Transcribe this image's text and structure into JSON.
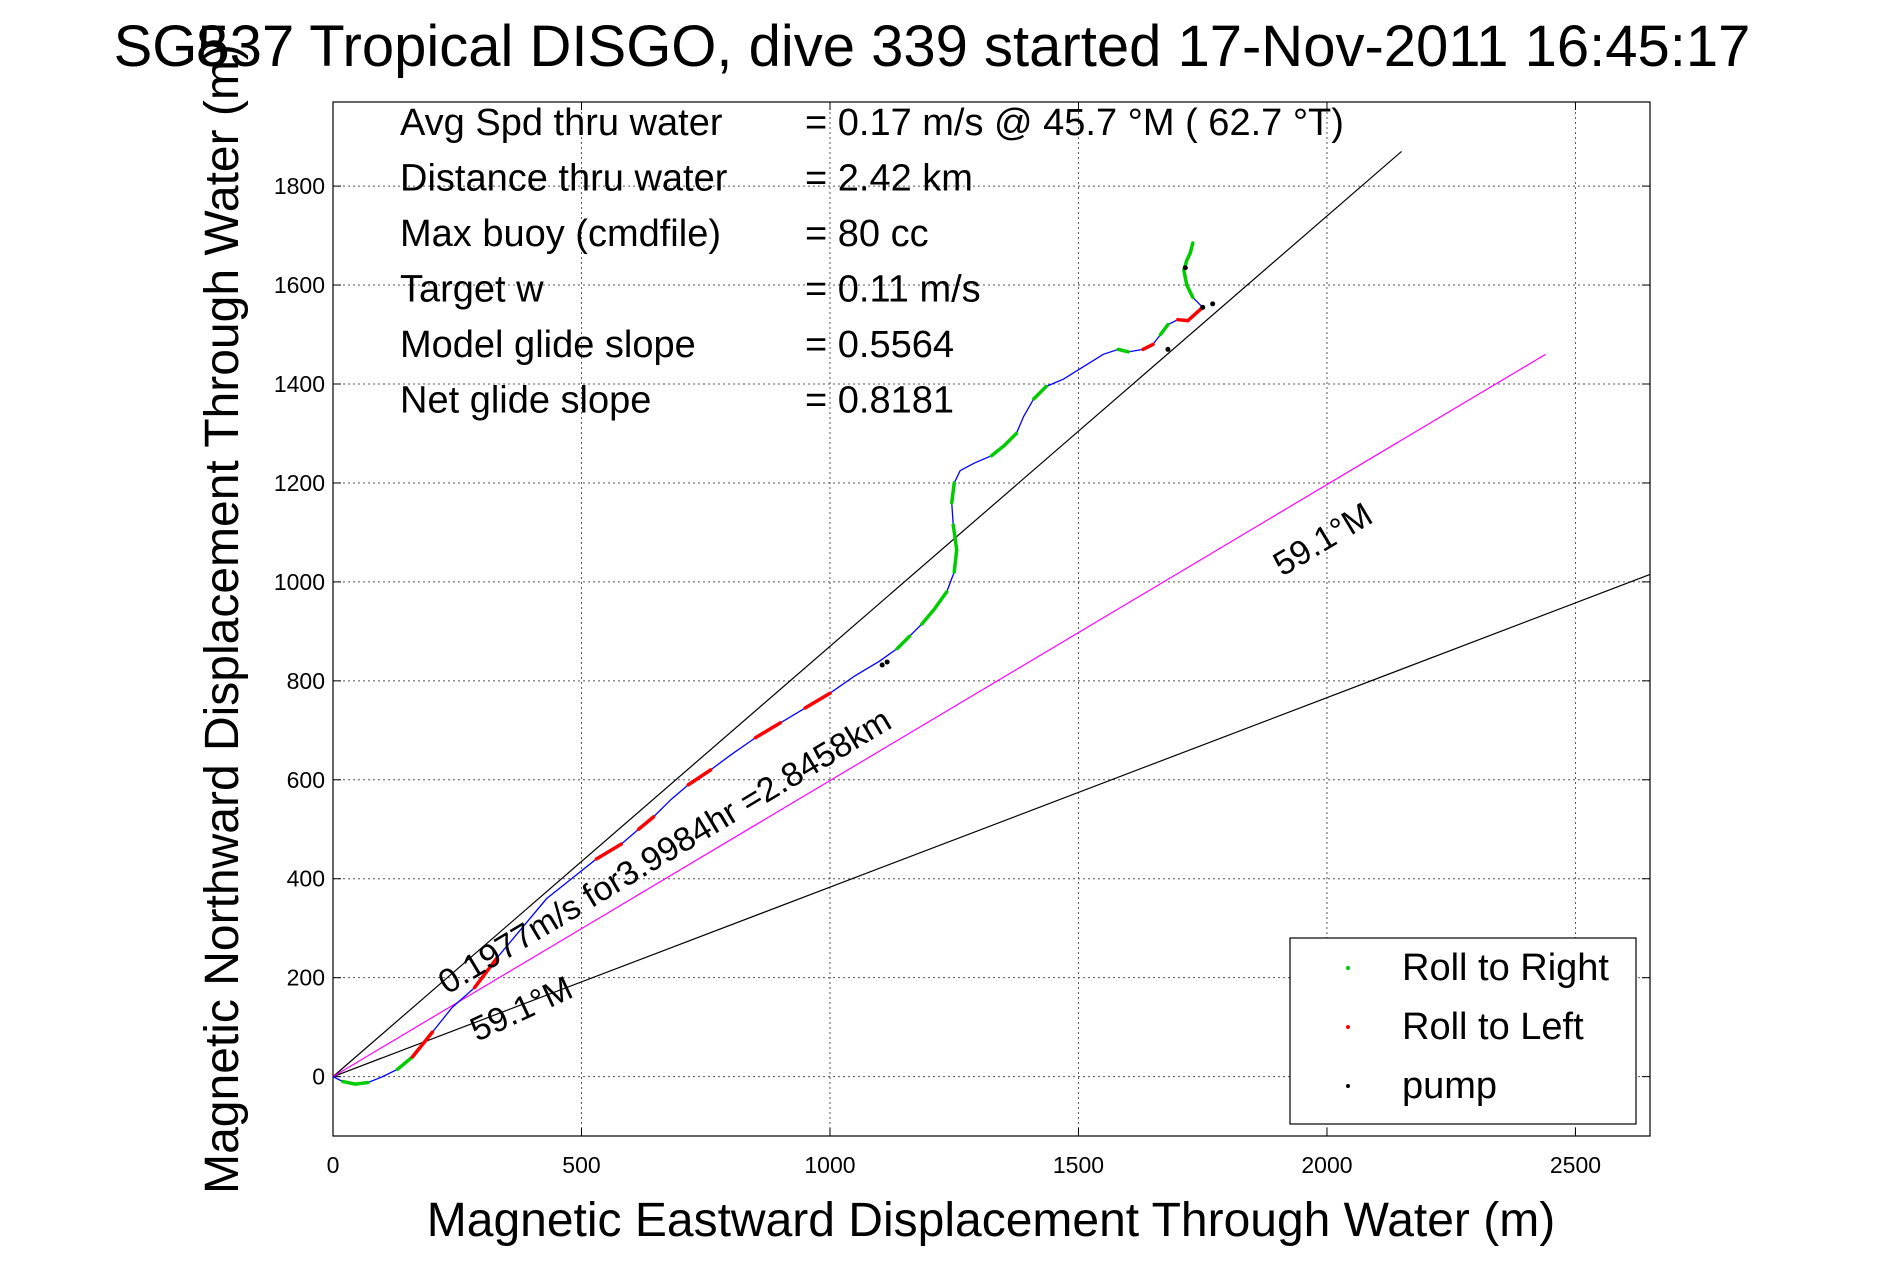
{
  "chart_data": {
    "type": "line",
    "title": "SG537 Tropical DISGO, dive 339 started 17-Nov-2011 16:45:17",
    "title_overlap_glyph": "8",
    "xlabel": "Magnetic Eastward Displacement Through Water (m)",
    "ylabel": "Magnetic Northward Displacement Through Water (m)",
    "xlim": [
      0,
      2650
    ],
    "ylim": [
      -120,
      1970
    ],
    "xticks": [
      0,
      500,
      1000,
      1500,
      2000,
      2500
    ],
    "yticks": [
      0,
      200,
      400,
      600,
      800,
      1000,
      1200,
      1400,
      1600,
      1800
    ],
    "grid": true,
    "legend": {
      "placement": "bottom-right",
      "entries": [
        {
          "label": "Roll to Right",
          "color": "#00cc00"
        },
        {
          "label": "Roll to Left",
          "color": "#ff0000"
        },
        {
          "label": "pump",
          "color": "#000000"
        }
      ]
    },
    "stats": [
      {
        "label": "Avg Spd thru water",
        "value": "=  0.17 m/s @  45.7 °M ( 62.7 °T)"
      },
      {
        "label": "Distance thru water",
        "value": "=  2.42 km"
      },
      {
        "label": "Max buoy (cmdfile)",
        "value": "= 80 cc"
      },
      {
        "label": "Target w",
        "value": "= 0.11 m/s"
      },
      {
        "label": "Model glide slope",
        "value": "= 0.5564"
      },
      {
        "label": "Net glide slope",
        "value": "= 0.8181"
      }
    ],
    "track": {
      "color": "#0000ff",
      "x": [
        0,
        20,
        45,
        70,
        100,
        130,
        160,
        200,
        240,
        285,
        330,
        380,
        430,
        480,
        530,
        580,
        615,
        645,
        680,
        715,
        760,
        800,
        850,
        900,
        950,
        1000,
        1050,
        1100,
        1135,
        1160,
        1185,
        1210,
        1235,
        1250,
        1255,
        1248,
        1245,
        1250,
        1262,
        1290,
        1325,
        1350,
        1375,
        1390,
        1410,
        1435,
        1470,
        1510,
        1550,
        1580,
        1600,
        1630,
        1650,
        1665,
        1680,
        1700,
        1720,
        1750,
        1730,
        1718,
        1712,
        1718,
        1725,
        1730
      ],
      "y": [
        0,
        -10,
        -15,
        -12,
        0,
        15,
        40,
        90,
        140,
        180,
        240,
        300,
        360,
        400,
        440,
        470,
        500,
        525,
        560,
        590,
        620,
        650,
        685,
        715,
        745,
        775,
        810,
        840,
        865,
        890,
        915,
        945,
        980,
        1020,
        1065,
        1115,
        1160,
        1200,
        1225,
        1240,
        1255,
        1275,
        1300,
        1335,
        1370,
        1395,
        1410,
        1435,
        1460,
        1470,
        1465,
        1470,
        1480,
        1500,
        1520,
        1530,
        1528,
        1555,
        1575,
        1600,
        1630,
        1650,
        1665,
        1685
      ],
      "roll_right_segments": [
        [
          1,
          3
        ],
        [
          5,
          6
        ],
        [
          28,
          29
        ],
        [
          30,
          32
        ],
        [
          33,
          35
        ],
        [
          36,
          37
        ],
        [
          40,
          42
        ],
        [
          44,
          45
        ],
        [
          49,
          50
        ],
        [
          53,
          54
        ],
        [
          58,
          63
        ]
      ],
      "roll_left_segments": [
        [
          6,
          7
        ],
        [
          9,
          10
        ],
        [
          14,
          15
        ],
        [
          16,
          17
        ],
        [
          19,
          20
        ],
        [
          22,
          23
        ],
        [
          24,
          25
        ],
        [
          51,
          52
        ],
        [
          55,
          57
        ]
      ],
      "pump_points": [
        [
          1105,
          832
        ],
        [
          1115,
          838
        ],
        [
          1680,
          1470
        ],
        [
          1715,
          1635
        ],
        [
          1750,
          1555
        ],
        [
          1770,
          1562
        ]
      ]
    },
    "reference_lines": [
      {
        "name": "upper-bound-line",
        "color": "#000000",
        "x": [
          0,
          2150
        ],
        "y": [
          0,
          1870
        ]
      },
      {
        "name": "lower-bound-line",
        "color": "#000000",
        "x": [
          0,
          2650
        ],
        "y": [
          0,
          1015
        ]
      },
      {
        "name": "heading-line",
        "color": "#ff00ff",
        "x": [
          0,
          2440
        ],
        "y": [
          0,
          1460
        ]
      }
    ],
    "annotations": [
      {
        "text": "0.1977m/s for3.9984hr =2.8458km",
        "x": 230,
        "y": 165,
        "angle_deg": -31
      },
      {
        "text": "59.1°M",
        "x": 290,
        "y": 70,
        "angle_deg": -25
      },
      {
        "text": "59.1°M",
        "x": 1910,
        "y": 1010,
        "angle_deg": -31
      }
    ]
  }
}
